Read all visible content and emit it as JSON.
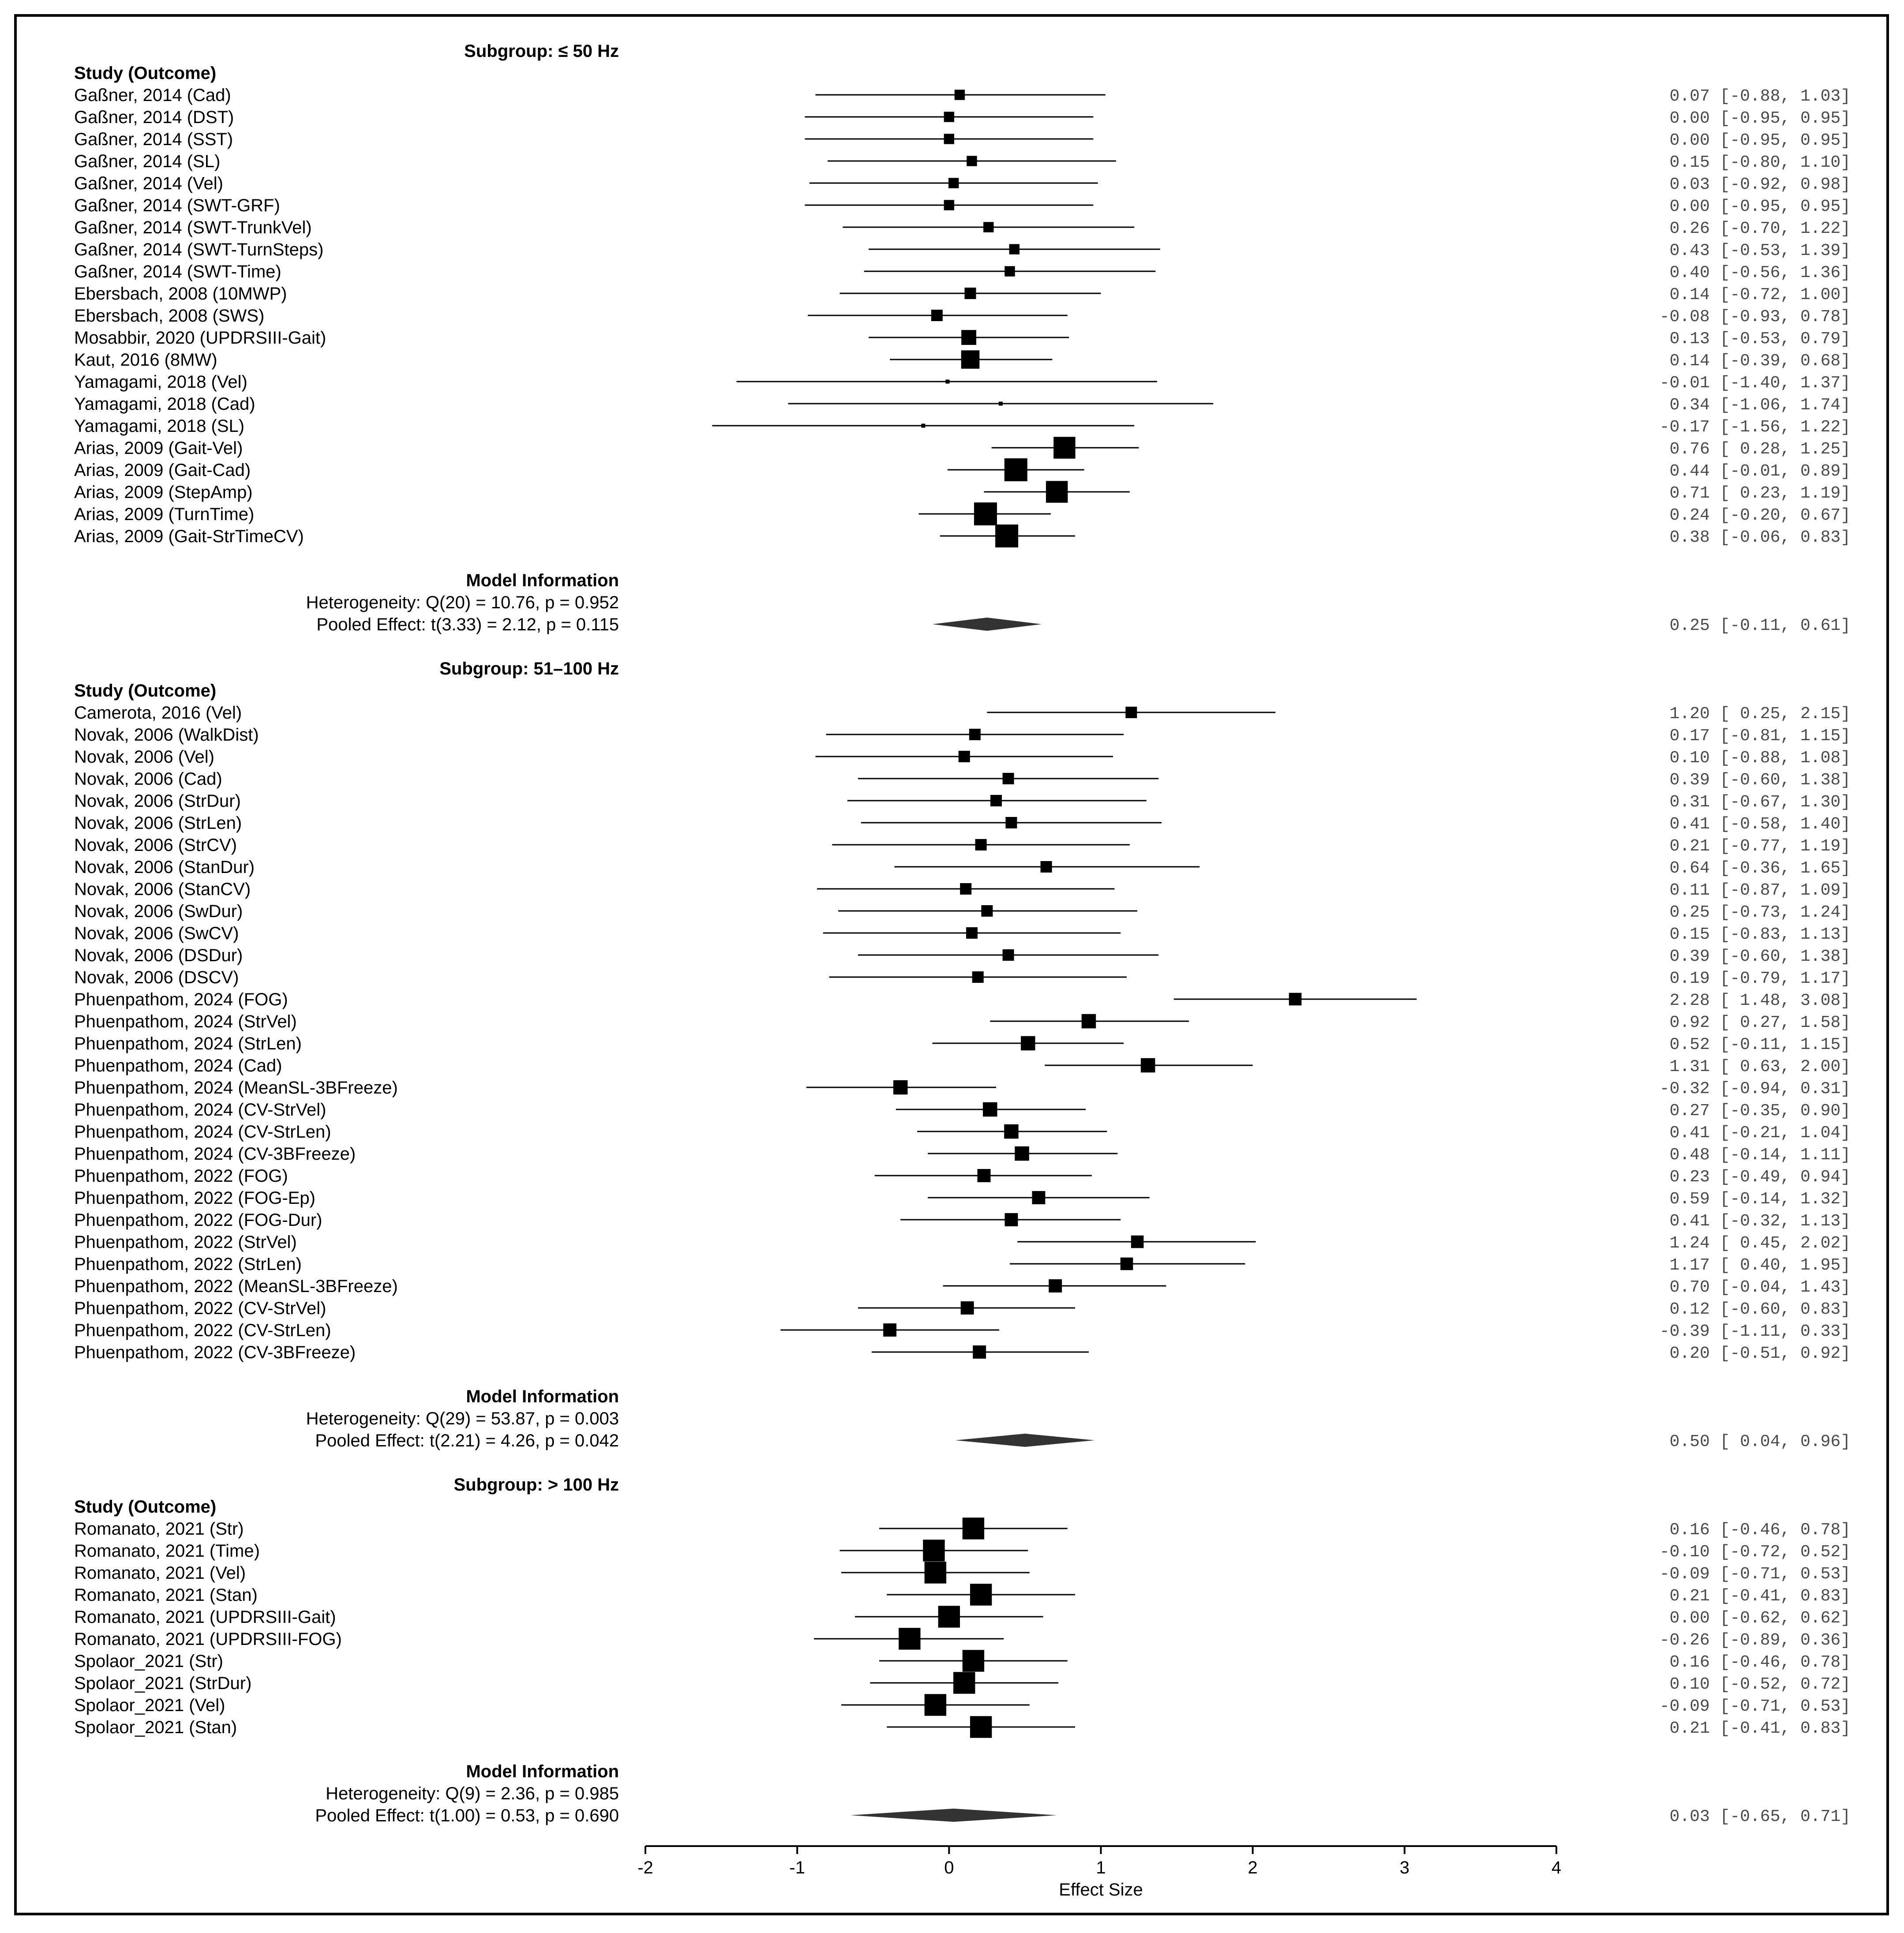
{
  "chart_data": {
    "type": "forest",
    "xlabel": "Effect Size",
    "xlim": [
      -2,
      4
    ],
    "xticks": [
      -2,
      -1,
      0,
      1,
      2,
      3,
      4
    ],
    "column_header": "Study (Outcome)",
    "model_header": "Model Information",
    "subgroups": [
      {
        "title": "Subgroup: ≤ 50 Hz",
        "studies": [
          {
            "label": "Gaßner, 2014 (Cad)",
            "est": 0.07,
            "lo": -0.88,
            "hi": 1.03,
            "weight": 0.9,
            "ci_text": "0.07 [-0.88, 1.03]"
          },
          {
            "label": "Gaßner, 2014 (DST)",
            "est": 0.0,
            "lo": -0.95,
            "hi": 0.95,
            "weight": 0.9,
            "ci_text": "0.00 [-0.95, 0.95]"
          },
          {
            "label": "Gaßner, 2014 (SST)",
            "est": 0.0,
            "lo": -0.95,
            "hi": 0.95,
            "weight": 0.9,
            "ci_text": "0.00 [-0.95, 0.95]"
          },
          {
            "label": "Gaßner, 2014 (SL)",
            "est": 0.15,
            "lo": -0.8,
            "hi": 1.1,
            "weight": 0.9,
            "ci_text": "0.15 [-0.80, 1.10]"
          },
          {
            "label": "Gaßner, 2014 (Vel)",
            "est": 0.03,
            "lo": -0.92,
            "hi": 0.98,
            "weight": 0.9,
            "ci_text": "0.03 [-0.92, 0.98]"
          },
          {
            "label": "Gaßner, 2014 (SWT-GRF)",
            "est": 0.0,
            "lo": -0.95,
            "hi": 0.95,
            "weight": 0.9,
            "ci_text": "0.00 [-0.95, 0.95]"
          },
          {
            "label": "Gaßner, 2014 (SWT-TrunkVel)",
            "est": 0.26,
            "lo": -0.7,
            "hi": 1.22,
            "weight": 0.9,
            "ci_text": "0.26 [-0.70, 1.22]"
          },
          {
            "label": "Gaßner, 2014 (SWT-TurnSteps)",
            "est": 0.43,
            "lo": -0.53,
            "hi": 1.39,
            "weight": 0.9,
            "ci_text": "0.43 [-0.53, 1.39]"
          },
          {
            "label": "Gaßner, 2014 (SWT-Time)",
            "est": 0.4,
            "lo": -0.56,
            "hi": 1.36,
            "weight": 0.9,
            "ci_text": "0.40 [-0.56, 1.36]"
          },
          {
            "label": "Ebersbach, 2008 (10MWP)",
            "est": 0.14,
            "lo": -0.72,
            "hi": 1.0,
            "weight": 1.0,
            "ci_text": "0.14 [-0.72, 1.00]"
          },
          {
            "label": "Ebersbach, 2008 (SWS)",
            "est": -0.08,
            "lo": -0.93,
            "hi": 0.78,
            "weight": 1.0,
            "ci_text": "-0.08 [-0.93, 0.78]"
          },
          {
            "label": "Mosabbir, 2020 (UPDRSIII-Gait)",
            "est": 0.13,
            "lo": -0.53,
            "hi": 0.79,
            "weight": 1.3,
            "ci_text": "0.13 [-0.53, 0.79]"
          },
          {
            "label": "Kaut, 2016 (8MW)",
            "est": 0.14,
            "lo": -0.39,
            "hi": 0.68,
            "weight": 1.6,
            "ci_text": "0.14 [-0.39, 0.68]"
          },
          {
            "label": "Yamagami, 2018 (Vel)",
            "est": -0.01,
            "lo": -1.4,
            "hi": 1.37,
            "weight": 0.35,
            "ci_text": "-0.01 [-1.40, 1.37]"
          },
          {
            "label": "Yamagami, 2018 (Cad)",
            "est": 0.34,
            "lo": -1.06,
            "hi": 1.74,
            "weight": 0.35,
            "ci_text": "0.34 [-1.06, 1.74]"
          },
          {
            "label": "Yamagami, 2018 (SL)",
            "est": -0.17,
            "lo": -1.56,
            "hi": 1.22,
            "weight": 0.35,
            "ci_text": "-0.17 [-1.56, 1.22]"
          },
          {
            "label": "Arias, 2009 (Gait-Vel)",
            "est": 0.76,
            "lo": 0.28,
            "hi": 1.25,
            "weight": 1.9,
            "ci_text": "0.76 [ 0.28, 1.25]"
          },
          {
            "label": "Arias, 2009 (Gait-Cad)",
            "est": 0.44,
            "lo": -0.01,
            "hi": 0.89,
            "weight": 2.0,
            "ci_text": "0.44 [-0.01, 0.89]"
          },
          {
            "label": "Arias, 2009 (StepAmp)",
            "est": 0.71,
            "lo": 0.23,
            "hi": 1.19,
            "weight": 1.9,
            "ci_text": "0.71 [ 0.23, 1.19]"
          },
          {
            "label": "Arias, 2009 (TurnTime)",
            "est": 0.24,
            "lo": -0.2,
            "hi": 0.67,
            "weight": 2.0,
            "ci_text": "0.24 [-0.20, 0.67]"
          },
          {
            "label": "Arias, 2009 (Gait-StrTimeCV)",
            "est": 0.38,
            "lo": -0.06,
            "hi": 0.83,
            "weight": 2.0,
            "ci_text": "0.38 [-0.06, 0.83]"
          }
        ],
        "heterogeneity": "Heterogeneity: Q(20) = 10.76, p = 0.952",
        "pooled_text": "Pooled Effect: t(3.33) = 2.12, p = 0.115",
        "pooled": {
          "est": 0.25,
          "lo": -0.11,
          "hi": 0.61,
          "ci_text": "0.25 [-0.11, 0.61]"
        }
      },
      {
        "title": "Subgroup: 51–100 Hz",
        "studies": [
          {
            "label": "Camerota, 2016 (Vel)",
            "est": 1.2,
            "lo": 0.25,
            "hi": 2.15,
            "weight": 1.0,
            "ci_text": "1.20 [ 0.25, 2.15]"
          },
          {
            "label": "Novak, 2006 (WalkDist)",
            "est": 0.17,
            "lo": -0.81,
            "hi": 1.15,
            "weight": 1.0,
            "ci_text": "0.17 [-0.81, 1.15]"
          },
          {
            "label": "Novak, 2006 (Vel)",
            "est": 0.1,
            "lo": -0.88,
            "hi": 1.08,
            "weight": 1.0,
            "ci_text": "0.10 [-0.88, 1.08]"
          },
          {
            "label": "Novak, 2006 (Cad)",
            "est": 0.39,
            "lo": -0.6,
            "hi": 1.38,
            "weight": 1.0,
            "ci_text": "0.39 [-0.60, 1.38]"
          },
          {
            "label": "Novak, 2006 (StrDur)",
            "est": 0.31,
            "lo": -0.67,
            "hi": 1.3,
            "weight": 1.0,
            "ci_text": "0.31 [-0.67, 1.30]"
          },
          {
            "label": "Novak, 2006 (StrLen)",
            "est": 0.41,
            "lo": -0.58,
            "hi": 1.4,
            "weight": 1.0,
            "ci_text": "0.41 [-0.58, 1.40]"
          },
          {
            "label": "Novak, 2006 (StrCV)",
            "est": 0.21,
            "lo": -0.77,
            "hi": 1.19,
            "weight": 1.0,
            "ci_text": "0.21 [-0.77, 1.19]"
          },
          {
            "label": "Novak, 2006 (StanDur)",
            "est": 0.64,
            "lo": -0.36,
            "hi": 1.65,
            "weight": 1.0,
            "ci_text": "0.64 [-0.36, 1.65]"
          },
          {
            "label": "Novak, 2006 (StanCV)",
            "est": 0.11,
            "lo": -0.87,
            "hi": 1.09,
            "weight": 1.0,
            "ci_text": "0.11 [-0.87, 1.09]"
          },
          {
            "label": "Novak, 2006 (SwDur)",
            "est": 0.25,
            "lo": -0.73,
            "hi": 1.24,
            "weight": 1.0,
            "ci_text": "0.25 [-0.73, 1.24]"
          },
          {
            "label": "Novak, 2006 (SwCV)",
            "est": 0.15,
            "lo": -0.83,
            "hi": 1.13,
            "weight": 1.0,
            "ci_text": "0.15 [-0.83, 1.13]"
          },
          {
            "label": "Novak, 2006 (DSDur)",
            "est": 0.39,
            "lo": -0.6,
            "hi": 1.38,
            "weight": 1.0,
            "ci_text": "0.39 [-0.60, 1.38]"
          },
          {
            "label": "Novak, 2006 (DSCV)",
            "est": 0.19,
            "lo": -0.79,
            "hi": 1.17,
            "weight": 1.0,
            "ci_text": "0.19 [-0.79, 1.17]"
          },
          {
            "label": "Phuenpathom, 2024 (FOG)",
            "est": 2.28,
            "lo": 1.48,
            "hi": 3.08,
            "weight": 1.1,
            "ci_text": "2.28 [ 1.48, 3.08]"
          },
          {
            "label": "Phuenpathom, 2024 (StrVel)",
            "est": 0.92,
            "lo": 0.27,
            "hi": 1.58,
            "weight": 1.25,
            "ci_text": "0.92 [ 0.27, 1.58]"
          },
          {
            "label": "Phuenpathom, 2024 (StrLen)",
            "est": 0.52,
            "lo": -0.11,
            "hi": 1.15,
            "weight": 1.25,
            "ci_text": "0.52 [-0.11, 1.15]"
          },
          {
            "label": "Phuenpathom, 2024 (Cad)",
            "est": 1.31,
            "lo": 0.63,
            "hi": 2.0,
            "weight": 1.25,
            "ci_text": "1.31 [ 0.63, 2.00]"
          },
          {
            "label": "Phuenpathom, 2024 (MeanSL-3BFreeze)",
            "est": -0.32,
            "lo": -0.94,
            "hi": 0.31,
            "weight": 1.25,
            "ci_text": "-0.32 [-0.94, 0.31]"
          },
          {
            "label": "Phuenpathom, 2024 (CV-StrVel)",
            "est": 0.27,
            "lo": -0.35,
            "hi": 0.9,
            "weight": 1.25,
            "ci_text": "0.27 [-0.35, 0.90]"
          },
          {
            "label": "Phuenpathom, 2024 (CV-StrLen)",
            "est": 0.41,
            "lo": -0.21,
            "hi": 1.04,
            "weight": 1.25,
            "ci_text": "0.41 [-0.21, 1.04]"
          },
          {
            "label": "Phuenpathom, 2024 (CV-3BFreeze)",
            "est": 0.48,
            "lo": -0.14,
            "hi": 1.11,
            "weight": 1.25,
            "ci_text": "0.48 [-0.14, 1.11]"
          },
          {
            "label": "Phuenpathom, 2022 (FOG)",
            "est": 0.23,
            "lo": -0.49,
            "hi": 0.94,
            "weight": 1.15,
            "ci_text": "0.23 [-0.49, 0.94]"
          },
          {
            "label": "Phuenpathom, 2022 (FOG-Ep)",
            "est": 0.59,
            "lo": -0.14,
            "hi": 1.32,
            "weight": 1.15,
            "ci_text": "0.59 [-0.14, 1.32]"
          },
          {
            "label": "Phuenpathom, 2022 (FOG-Dur)",
            "est": 0.41,
            "lo": -0.32,
            "hi": 1.13,
            "weight": 1.15,
            "ci_text": "0.41 [-0.32, 1.13]"
          },
          {
            "label": "Phuenpathom, 2022 (StrVel)",
            "est": 1.24,
            "lo": 0.45,
            "hi": 2.02,
            "weight": 1.1,
            "ci_text": "1.24 [ 0.45, 2.02]"
          },
          {
            "label": "Phuenpathom, 2022 (StrLen)",
            "est": 1.17,
            "lo": 0.4,
            "hi": 1.95,
            "weight": 1.1,
            "ci_text": "1.17 [ 0.40, 1.95]"
          },
          {
            "label": "Phuenpathom, 2022 (MeanSL-3BFreeze)",
            "est": 0.7,
            "lo": -0.04,
            "hi": 1.43,
            "weight": 1.15,
            "ci_text": "0.70 [-0.04, 1.43]"
          },
          {
            "label": "Phuenpathom, 2022 (CV-StrVel)",
            "est": 0.12,
            "lo": -0.6,
            "hi": 0.83,
            "weight": 1.15,
            "ci_text": "0.12 [-0.60, 0.83]"
          },
          {
            "label": "Phuenpathom, 2022 (CV-StrLen)",
            "est": -0.39,
            "lo": -1.11,
            "hi": 0.33,
            "weight": 1.15,
            "ci_text": "-0.39 [-1.11, 0.33]"
          },
          {
            "label": "Phuenpathom, 2022 (CV-3BFreeze)",
            "est": 0.2,
            "lo": -0.51,
            "hi": 0.92,
            "weight": 1.15,
            "ci_text": "0.20 [-0.51, 0.92]"
          }
        ],
        "heterogeneity": "Heterogeneity: Q(29) = 53.87, p = 0.003",
        "pooled_text": "Pooled Effect: t(2.21) = 4.26, p = 0.042",
        "pooled": {
          "est": 0.5,
          "lo": 0.04,
          "hi": 0.96,
          "ci_text": "0.50 [ 0.04, 0.96]"
        }
      },
      {
        "title": "Subgroup: > 100 Hz",
        "studies": [
          {
            "label": "Romanato, 2021 (Str)",
            "est": 0.16,
            "lo": -0.46,
            "hi": 0.78,
            "weight": 1.9,
            "ci_text": "0.16 [-0.46, 0.78]"
          },
          {
            "label": "Romanato, 2021 (Time)",
            "est": -0.1,
            "lo": -0.72,
            "hi": 0.52,
            "weight": 1.9,
            "ci_text": "-0.10 [-0.72, 0.52]"
          },
          {
            "label": "Romanato, 2021 (Vel)",
            "est": -0.09,
            "lo": -0.71,
            "hi": 0.53,
            "weight": 1.9,
            "ci_text": "-0.09 [-0.71, 0.53]"
          },
          {
            "label": "Romanato, 2021 (Stan)",
            "est": 0.21,
            "lo": -0.41,
            "hi": 0.83,
            "weight": 1.9,
            "ci_text": "0.21 [-0.41, 0.83]"
          },
          {
            "label": "Romanato, 2021 (UPDRSIII-Gait)",
            "est": 0.0,
            "lo": -0.62,
            "hi": 0.62,
            "weight": 1.9,
            "ci_text": "0.00 [-0.62, 0.62]"
          },
          {
            "label": "Romanato, 2021 (UPDRSIII-FOG)",
            "est": -0.26,
            "lo": -0.89,
            "hi": 0.36,
            "weight": 1.9,
            "ci_text": "-0.26 [-0.89, 0.36]"
          },
          {
            "label": "Spolaor_2021 (Str)",
            "est": 0.16,
            "lo": -0.46,
            "hi": 0.78,
            "weight": 1.9,
            "ci_text": "0.16 [-0.46, 0.78]"
          },
          {
            "label": "Spolaor_2021 (StrDur)",
            "est": 0.1,
            "lo": -0.52,
            "hi": 0.72,
            "weight": 1.9,
            "ci_text": "0.10 [-0.52, 0.72]"
          },
          {
            "label": "Spolaor_2021 (Vel)",
            "est": -0.09,
            "lo": -0.71,
            "hi": 0.53,
            "weight": 1.9,
            "ci_text": "-0.09 [-0.71, 0.53]"
          },
          {
            "label": "Spolaor_2021 (Stan)",
            "est": 0.21,
            "lo": -0.41,
            "hi": 0.83,
            "weight": 1.9,
            "ci_text": "0.21 [-0.41, 0.83]"
          }
        ],
        "heterogeneity": "Heterogeneity: Q(9) = 2.36, p = 0.985",
        "pooled_text": "Pooled Effect: t(1.00) = 0.53, p = 0.690",
        "pooled": {
          "est": 0.03,
          "lo": -0.65,
          "hi": 0.71,
          "ci_text": "0.03 [-0.65, 0.71]"
        }
      }
    ]
  }
}
